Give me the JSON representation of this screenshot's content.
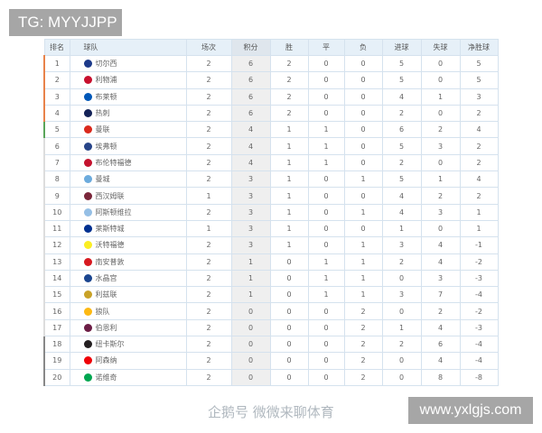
{
  "overlay": {
    "tg_label": "TG: MYYJJPP",
    "site_label": "www.yxlgjs.com",
    "watermark": "企鹅号 微微来聊体育"
  },
  "table": {
    "headers": [
      "排名",
      "球队",
      "场次",
      "积分",
      "胜",
      "平",
      "负",
      "进球",
      "失球",
      "净胜球"
    ],
    "rows": [
      {
        "rank": "1",
        "team": "切尔西",
        "icon": "#1d3a8a",
        "zone": "#e8834a",
        "cells": [
          "2",
          "6",
          "2",
          "0",
          "0",
          "5",
          "0",
          "5"
        ]
      },
      {
        "rank": "2",
        "team": "利物浦",
        "icon": "#c8102e",
        "zone": "#e8834a",
        "cells": [
          "2",
          "6",
          "2",
          "0",
          "0",
          "5",
          "0",
          "5"
        ]
      },
      {
        "rank": "3",
        "team": "布莱顿",
        "icon": "#0057b8",
        "zone": "#e8834a",
        "cells": [
          "2",
          "6",
          "2",
          "0",
          "0",
          "4",
          "1",
          "3"
        ]
      },
      {
        "rank": "4",
        "team": "热刺",
        "icon": "#132257",
        "zone": "#e8834a",
        "cells": [
          "2",
          "6",
          "2",
          "0",
          "0",
          "2",
          "0",
          "2"
        ]
      },
      {
        "rank": "5",
        "team": "曼联",
        "icon": "#da291c",
        "zone": "#5aa55a",
        "cells": [
          "2",
          "4",
          "1",
          "1",
          "0",
          "6",
          "2",
          "4"
        ]
      },
      {
        "rank": "6",
        "team": "埃弗顿",
        "icon": "#274488",
        "zone": "#dddddd",
        "cells": [
          "2",
          "4",
          "1",
          "1",
          "0",
          "5",
          "3",
          "2"
        ]
      },
      {
        "rank": "7",
        "team": "布伦特福德",
        "icon": "#c4122e",
        "zone": "#dddddd",
        "cells": [
          "2",
          "4",
          "1",
          "1",
          "0",
          "2",
          "0",
          "2"
        ]
      },
      {
        "rank": "8",
        "team": "曼城",
        "icon": "#6cabdd",
        "zone": "#dddddd",
        "cells": [
          "2",
          "3",
          "1",
          "0",
          "1",
          "5",
          "1",
          "4"
        ]
      },
      {
        "rank": "9",
        "team": "西汉姆联",
        "icon": "#7a263a",
        "zone": "#dddddd",
        "cells": [
          "1",
          "3",
          "1",
          "0",
          "0",
          "4",
          "2",
          "2"
        ]
      },
      {
        "rank": "10",
        "team": "阿斯顿维拉",
        "icon": "#95bfe5",
        "zone": "#dddddd",
        "cells": [
          "2",
          "3",
          "1",
          "0",
          "1",
          "4",
          "3",
          "1"
        ]
      },
      {
        "rank": "11",
        "team": "莱斯特城",
        "icon": "#003090",
        "zone": "#dddddd",
        "cells": [
          "1",
          "3",
          "1",
          "0",
          "0",
          "1",
          "0",
          "1"
        ]
      },
      {
        "rank": "12",
        "team": "沃特福德",
        "icon": "#fbee23",
        "zone": "#dddddd",
        "cells": [
          "2",
          "3",
          "1",
          "0",
          "1",
          "3",
          "4",
          "-1"
        ]
      },
      {
        "rank": "13",
        "team": "南安普敦",
        "icon": "#d71920",
        "zone": "#dddddd",
        "cells": [
          "2",
          "1",
          "0",
          "1",
          "1",
          "2",
          "4",
          "-2"
        ]
      },
      {
        "rank": "14",
        "team": "水晶宫",
        "icon": "#1b458f",
        "zone": "#dddddd",
        "cells": [
          "2",
          "1",
          "0",
          "1",
          "1",
          "0",
          "3",
          "-3"
        ]
      },
      {
        "rank": "15",
        "team": "利兹联",
        "icon": "#c9a227",
        "zone": "#dddddd",
        "cells": [
          "2",
          "1",
          "0",
          "1",
          "1",
          "3",
          "7",
          "-4"
        ]
      },
      {
        "rank": "16",
        "team": "狼队",
        "icon": "#fdb913",
        "zone": "#dddddd",
        "cells": [
          "2",
          "0",
          "0",
          "0",
          "2",
          "0",
          "2",
          "-2"
        ]
      },
      {
        "rank": "17",
        "team": "伯恩利",
        "icon": "#6c1d45",
        "zone": "#dddddd",
        "cells": [
          "2",
          "0",
          "0",
          "0",
          "2",
          "1",
          "4",
          "-3"
        ]
      },
      {
        "rank": "18",
        "team": "纽卡斯尔",
        "icon": "#241f20",
        "zone": "#888888",
        "cells": [
          "2",
          "0",
          "0",
          "0",
          "2",
          "2",
          "6",
          "-4"
        ]
      },
      {
        "rank": "19",
        "team": "阿森纳",
        "icon": "#ef0107",
        "zone": "#888888",
        "cells": [
          "2",
          "0",
          "0",
          "0",
          "2",
          "0",
          "4",
          "-4"
        ]
      },
      {
        "rank": "20",
        "team": "诺维奇",
        "icon": "#00a650",
        "zone": "#888888",
        "cells": [
          "2",
          "0",
          "0",
          "0",
          "2",
          "0",
          "8",
          "-8"
        ]
      }
    ]
  }
}
